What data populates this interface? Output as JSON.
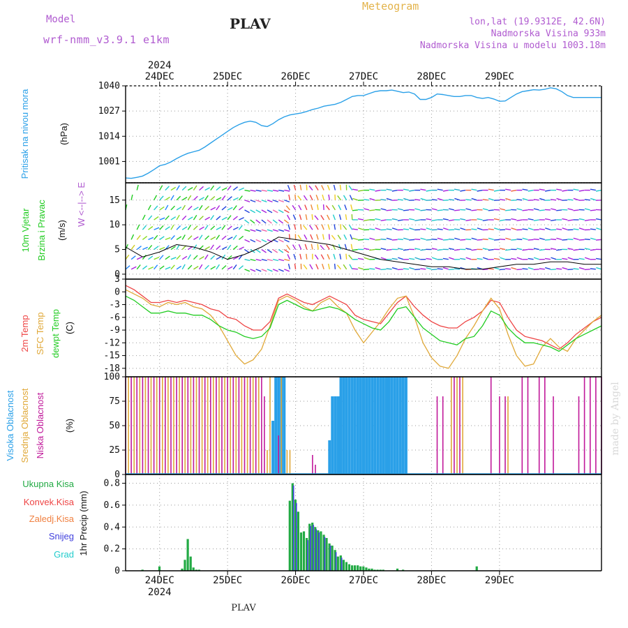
{
  "header": {
    "model_label": "Model",
    "model_name": "wrf-nmm_v3.9.1 e1km",
    "station": "PLAV",
    "product": "Meteogram",
    "lonlat": "lon,lat (19.9312E, 42.6N)",
    "altitude": "Nadmorska Visina 933m",
    "altitude_model": "Nadmorska Visina u modelu 1003.18m"
  },
  "time_axis": {
    "year": "2024",
    "days": [
      "24DEC",
      "25DEC",
      "26DEC",
      "27DEC",
      "28DEC",
      "29DEC"
    ],
    "bottom_label": "PLAV"
  },
  "credit": "made by Angel",
  "colors": {
    "pressure": "#2aa0e8",
    "temp2m": "#ee4444",
    "sfc_temp": "#e0a838",
    "dewpoint": "#22cc22",
    "cloud_high": "#2aa0e8",
    "cloud_mid": "#e0a838",
    "cloud_low": "#c0189a",
    "precip_total": "#22aa44",
    "precip_conv": "#ee4444",
    "precip_frz": "#f08040",
    "snow": "#4040dd",
    "grad": "#22cccc",
    "wind_label": "#22cc22",
    "axis_label_purple": "#b05bd0"
  },
  "chart_data": [
    {
      "type": "line",
      "panel": "pressure",
      "ylabel": [
        "Pritisak na nivou mora",
        "(hPa)"
      ],
      "yticks": [
        1001,
        1014,
        1027,
        1040
      ],
      "ylim": [
        990,
        1040
      ],
      "grid": true,
      "x_unit": "hours since 24DEC 00:00",
      "x": [
        -12,
        -10,
        -8,
        -6,
        -4,
        -2,
        0,
        2,
        4,
        6,
        8,
        10,
        12,
        14,
        16,
        18,
        20,
        22,
        24,
        26,
        28,
        30,
        32,
        34,
        36,
        38,
        40,
        42,
        44,
        46,
        48,
        50,
        52,
        54,
        56,
        58,
        60,
        62,
        64,
        66,
        68,
        70,
        72,
        74,
        76,
        78,
        80,
        82,
        84,
        86,
        88,
        90,
        92,
        94,
        96,
        98,
        100,
        102,
        104,
        106,
        108,
        110,
        112,
        114,
        116,
        118,
        120,
        122,
        124,
        126,
        128,
        130,
        132,
        134,
        136,
        138,
        140,
        142,
        144,
        146,
        148,
        150,
        152,
        154,
        156
      ],
      "series": [
        {
          "name": "Pritisak na nivou mora",
          "values": [
            992.5,
            992.3,
            992.8,
            993.5,
            995.0,
            996.8,
            998.8,
            999.5,
            1000.8,
            1002.5,
            1004.0,
            1005.2,
            1006.0,
            1006.8,
            1008.5,
            1010.5,
            1012.5,
            1014.5,
            1016.5,
            1018.5,
            1020.0,
            1021.2,
            1021.8,
            1021.2,
            1019.5,
            1019.0,
            1020.5,
            1022.5,
            1024.0,
            1025.0,
            1025.5,
            1026.0,
            1026.8,
            1027.8,
            1028.5,
            1029.5,
            1030.0,
            1030.5,
            1031.5,
            1033.0,
            1034.5,
            1035.0,
            1035.0,
            1036.0,
            1037.0,
            1037.5,
            1037.5,
            1037.8,
            1037.2,
            1036.5,
            1036.8,
            1035.8,
            1033.0,
            1033.0,
            1034.0,
            1035.8,
            1035.5,
            1035.0,
            1034.5,
            1034.5,
            1035.0,
            1035.0,
            1034.0,
            1033.5,
            1034.0,
            1033.2,
            1032.0,
            1032.2,
            1034.0,
            1035.8,
            1037.0,
            1037.5,
            1038.0,
            1037.8,
            1038.2,
            1039.0,
            1038.5,
            1037.0,
            1035.0,
            1034.0,
            1034.0,
            1034.0,
            1034.0,
            1034.0,
            1034.0
          ]
        }
      ]
    },
    {
      "type": "line",
      "panel": "wind",
      "ylabel": [
        "10m Vjetar",
        "Brzina i Pravac",
        "(m/s)"
      ],
      "compass_label": "W <--|--> E",
      "yticks": [
        0,
        5,
        10,
        15
      ],
      "ylim": [
        -1,
        18.5
      ],
      "grid": true,
      "x": [
        -12,
        -6,
        0,
        6,
        12,
        18,
        24,
        30,
        36,
        42,
        48,
        54,
        60,
        66,
        72,
        78,
        84,
        90,
        96,
        102,
        108,
        114,
        120,
        126,
        132,
        138,
        144,
        150,
        156
      ],
      "series": [
        {
          "name": "wind_speed_10m",
          "values": [
            5.5,
            3.5,
            4.5,
            6.0,
            5.5,
            4.5,
            3.0,
            4.0,
            5.5,
            7.5,
            7.0,
            6.5,
            6.0,
            5.0,
            4.0,
            3.0,
            2.5,
            2.0,
            1.5,
            1.5,
            1.0,
            1.0,
            1.5,
            2.0,
            2.0,
            2.5,
            2.5,
            2.0,
            2.0
          ]
        }
      ],
      "note": "Vertical columns of colored wind arrows drawn for each hour and height level; colors vary from cyan/green/yellow/orange/red/purple/blue by speed."
    },
    {
      "type": "line",
      "panel": "temperature",
      "ylabel": [
        "2m Temp",
        "SFC Temp",
        "dewpt Temp",
        "(C)"
      ],
      "yticks": [
        3,
        0,
        -3,
        -6,
        -9,
        -12,
        -15,
        -18
      ],
      "ylim": [
        -20,
        3
      ],
      "grid": true,
      "x": [
        -12,
        -9,
        -6,
        -3,
        0,
        3,
        6,
        9,
        12,
        15,
        18,
        21,
        24,
        27,
        30,
        33,
        36,
        39,
        42,
        45,
        48,
        51,
        54,
        57,
        60,
        63,
        66,
        69,
        72,
        75,
        78,
        81,
        84,
        87,
        90,
        93,
        96,
        99,
        102,
        105,
        108,
        111,
        114,
        117,
        120,
        123,
        126,
        129,
        132,
        135,
        138,
        141,
        144,
        147,
        150,
        153,
        156
      ],
      "series": [
        {
          "name": "2m Temp",
          "values": [
            1.5,
            0.5,
            -1.0,
            -2.5,
            -2.5,
            -2.0,
            -2.5,
            -2.0,
            -2.5,
            -3.0,
            -4.0,
            -4.5,
            -6.0,
            -6.5,
            -8.0,
            -9.0,
            -9.0,
            -7.0,
            -1.5,
            -0.5,
            -1.5,
            -2.5,
            -3.0,
            -2.0,
            -1.0,
            -2.0,
            -3.0,
            -5.5,
            -6.5,
            -7.0,
            -7.5,
            -5.0,
            -2.5,
            -1.0,
            -3.5,
            -5.5,
            -7.0,
            -8.0,
            -8.5,
            -8.5,
            -7.0,
            -6.0,
            -4.5,
            -2.0,
            -2.5,
            -6.0,
            -9.0,
            -10.5,
            -11.0,
            -11.5,
            -12.5,
            -13.5,
            -12.0,
            -10.0,
            -8.5,
            -7.0,
            -6.0
          ]
        },
        {
          "name": "SFC Temp",
          "values": [
            0.5,
            -0.5,
            -1.5,
            -3.0,
            -3.5,
            -2.5,
            -3.0,
            -2.5,
            -3.5,
            -4.0,
            -5.5,
            -8.0,
            -11.5,
            -15.0,
            -17.0,
            -16.0,
            -13.5,
            -8.0,
            -2.0,
            -1.0,
            -2.0,
            -3.5,
            -4.5,
            -2.5,
            -1.5,
            -3.5,
            -5.0,
            -9.0,
            -12.0,
            -9.5,
            -7.0,
            -4.0,
            -1.5,
            -1.0,
            -6.0,
            -12.0,
            -15.5,
            -17.5,
            -18.0,
            -15.0,
            -11.0,
            -8.0,
            -4.5,
            -1.5,
            -4.0,
            -10.0,
            -15.0,
            -17.5,
            -17.0,
            -13.0,
            -11.0,
            -13.0,
            -14.0,
            -11.0,
            -9.0,
            -7.0,
            -5.5
          ]
        },
        {
          "name": "dewpt Temp",
          "values": [
            -1.0,
            -2.0,
            -3.5,
            -5.0,
            -5.0,
            -4.5,
            -5.0,
            -5.0,
            -5.5,
            -5.5,
            -6.5,
            -8.0,
            -9.0,
            -9.5,
            -10.5,
            -11.0,
            -10.5,
            -8.5,
            -3.0,
            -2.0,
            -3.0,
            -4.0,
            -4.5,
            -4.0,
            -3.5,
            -4.0,
            -5.0,
            -6.5,
            -7.5,
            -8.5,
            -9.0,
            -7.0,
            -4.0,
            -3.5,
            -6.0,
            -8.5,
            -10.0,
            -11.5,
            -12.0,
            -12.5,
            -11.0,
            -10.5,
            -8.0,
            -4.5,
            -5.5,
            -8.5,
            -10.5,
            -12.0,
            -12.0,
            -12.5,
            -13.0,
            -14.0,
            -12.5,
            -11.0,
            -10.0,
            -9.0,
            -8.0
          ]
        }
      ]
    },
    {
      "type": "bar",
      "panel": "clouds",
      "ylabel": [
        "Visoka Oblacnost",
        "Srednja Oblacnost",
        "Niska Oblacnost",
        "(%)"
      ],
      "yticks": [
        0,
        25,
        50,
        75,
        100
      ],
      "ylim": [
        0,
        100
      ],
      "grid": true,
      "series": [
        {
          "name": "Visoka Oblacnost",
          "x": [
            40,
            41,
            42,
            43,
            44,
            60,
            61,
            62,
            63,
            64,
            65,
            66,
            67,
            68,
            69,
            70,
            71,
            72,
            73,
            74,
            75,
            76,
            77,
            78,
            79,
            80,
            81,
            82,
            83,
            84,
            85,
            86,
            87
          ],
          "values": [
            55,
            100,
            100,
            100,
            100,
            35,
            80,
            80,
            80,
            100,
            100,
            100,
            100,
            100,
            100,
            100,
            100,
            100,
            100,
            100,
            100,
            100,
            100,
            100,
            100,
            100,
            100,
            100,
            100,
            100,
            100,
            100,
            100
          ]
        },
        {
          "name": "Srednja Oblacnost",
          "x": [
            -11,
            -9,
            -7,
            -5,
            -3,
            -1,
            1,
            3,
            5,
            7,
            9,
            11,
            13,
            15,
            17,
            19,
            21,
            23,
            25,
            27,
            29,
            31,
            33,
            35,
            38,
            39,
            43,
            45,
            46,
            103,
            105,
            107,
            123
          ],
          "values": [
            100,
            100,
            100,
            100,
            100,
            100,
            100,
            100,
            100,
            100,
            100,
            100,
            100,
            100,
            100,
            100,
            100,
            100,
            100,
            100,
            100,
            100,
            100,
            100,
            25,
            100,
            100,
            25,
            25,
            100,
            100,
            100,
            80
          ]
        },
        {
          "name": "Niska Oblacnost",
          "x": [
            -12,
            -10,
            -8,
            -6,
            -4,
            -2,
            0,
            2,
            4,
            6,
            8,
            10,
            12,
            14,
            16,
            18,
            20,
            22,
            24,
            26,
            28,
            30,
            32,
            34,
            36,
            37,
            42,
            54,
            55,
            98,
            100,
            104,
            106,
            117,
            120,
            122,
            128,
            130,
            134,
            136,
            139,
            148,
            150,
            152,
            154,
            156
          ],
          "values": [
            100,
            100,
            100,
            100,
            100,
            100,
            100,
            100,
            100,
            100,
            100,
            100,
            100,
            100,
            100,
            100,
            100,
            100,
            100,
            100,
            100,
            100,
            100,
            100,
            100,
            80,
            40,
            20,
            10,
            80,
            80,
            100,
            100,
            100,
            80,
            80,
            100,
            100,
            100,
            100,
            80,
            80,
            100,
            100,
            100,
            100
          ]
        }
      ]
    },
    {
      "type": "bar",
      "panel": "precipitation",
      "ylabel": [
        "Ukupna Kisa",
        "Konvek.Kisa",
        "Zaledj.Kisa",
        "Snijeg",
        "Grad",
        "1hr Precip (mm)"
      ],
      "yticks": [
        0,
        0.2,
        0.4,
        0.6,
        0.8
      ],
      "ylim": [
        0,
        0.88
      ],
      "grid": true,
      "series": [
        {
          "name": "Ukupna Kisa",
          "x": [
            -6,
            0,
            8,
            9,
            10,
            11,
            12,
            13,
            14,
            46,
            47,
            48,
            49,
            50,
            51,
            52,
            53,
            54,
            55,
            56,
            57,
            58,
            59,
            60,
            61,
            62,
            63,
            64,
            65,
            66,
            67,
            68,
            69,
            70,
            71,
            72,
            73,
            74,
            75,
            76,
            77,
            78,
            79,
            84,
            86,
            112
          ],
          "values": [
            0.01,
            0.04,
            0.02,
            0.1,
            0.29,
            0.13,
            0.03,
            0.01,
            0.01,
            0.64,
            0.8,
            0.65,
            0.54,
            0.35,
            0.36,
            0.3,
            0.43,
            0.44,
            0.4,
            0.37,
            0.36,
            0.33,
            0.3,
            0.25,
            0.23,
            0.19,
            0.13,
            0.14,
            0.1,
            0.08,
            0.06,
            0.05,
            0.05,
            0.05,
            0.04,
            0.04,
            0.03,
            0.02,
            0.02,
            0.01,
            0.01,
            0.01,
            0.01,
            0.02,
            0.01,
            0.04
          ]
        },
        {
          "name": "Snijeg",
          "x": [
            47,
            48,
            52,
            53,
            54,
            55,
            56,
            58,
            60,
            62,
            64
          ],
          "values": [
            0.78,
            0.62,
            0.28,
            0.41,
            0.42,
            0.38,
            0.35,
            0.31,
            0.23,
            0.17,
            0.12
          ]
        }
      ]
    }
  ]
}
